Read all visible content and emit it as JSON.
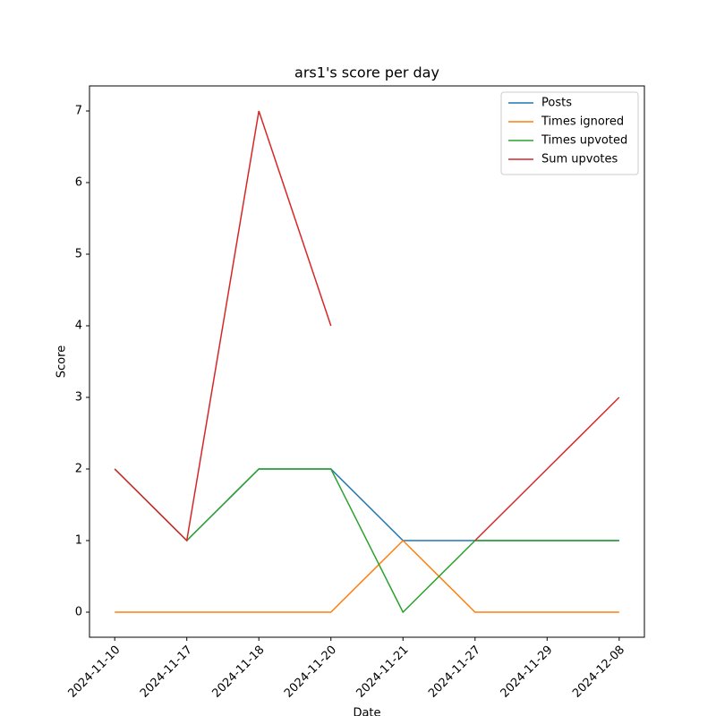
{
  "chart_data": {
    "type": "line",
    "title": "ars1's score per day",
    "xlabel": "Date",
    "ylabel": "Score",
    "categories": [
      "2024-11-10",
      "2024-11-17",
      "2024-11-18",
      "2024-11-20",
      "2024-11-21",
      "2024-11-27",
      "2024-11-29",
      "2024-12-08"
    ],
    "series": [
      {
        "name": "Posts",
        "color": "#1f77b4",
        "values": [
          2,
          1,
          2,
          2,
          1,
          1,
          1,
          1
        ]
      },
      {
        "name": "Times ignored",
        "color": "#ff7f0e",
        "values": [
          0,
          0,
          0,
          0,
          1,
          0,
          0,
          0
        ]
      },
      {
        "name": "Times upvoted",
        "color": "#2ca02c",
        "values": [
          2,
          1,
          2,
          2,
          0,
          1,
          1,
          1
        ]
      },
      {
        "name": "Sum upvotes",
        "color": "#d62728",
        "values": [
          2,
          1,
          7,
          4,
          null,
          1,
          2,
          3
        ]
      }
    ],
    "ylim": [
      -0.35,
      7.35
    ],
    "yticks": [
      0,
      1,
      2,
      3,
      4,
      5,
      6,
      7
    ],
    "grid": false,
    "legend": "upper right"
  }
}
